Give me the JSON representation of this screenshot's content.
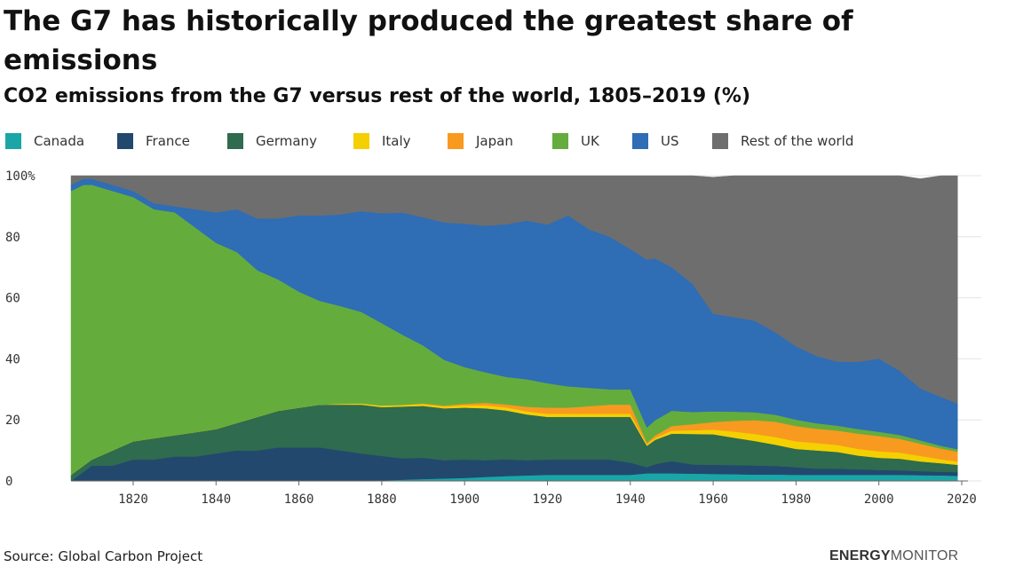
{
  "title": "The G7 has historically produced the greatest share of emissions",
  "subtitle": "CO2 emissions from the G7 versus rest of the world, 1805–2019 (%)",
  "source": "Source: Global Carbon Project",
  "brand": {
    "part1": "ENERGY",
    "part2": "MONITOR"
  },
  "chart_data": {
    "type": "area",
    "stacked": true,
    "title": "CO2 emissions from the G7 versus rest of the world, 1805–2019 (%)",
    "xlabel": "",
    "ylabel": "",
    "xlim": [
      1805,
      2019
    ],
    "ylim": [
      0,
      100
    ],
    "x_ticks": [
      1820,
      1840,
      1860,
      1880,
      1900,
      1920,
      1940,
      1960,
      1980,
      2000,
      2020
    ],
    "y_ticks": [
      0,
      20,
      40,
      60,
      80,
      100
    ],
    "y_tick_labels": [
      "0",
      "20",
      "40",
      "60",
      "80",
      "100%"
    ],
    "grid": "horizontal",
    "legend_position": "top",
    "x": [
      1805,
      1808,
      1810,
      1815,
      1820,
      1825,
      1830,
      1835,
      1840,
      1845,
      1850,
      1855,
      1860,
      1865,
      1870,
      1875,
      1880,
      1885,
      1890,
      1895,
      1900,
      1905,
      1910,
      1915,
      1920,
      1925,
      1930,
      1935,
      1940,
      1944,
      1946,
      1950,
      1955,
      1960,
      1965,
      1970,
      1975,
      1980,
      1985,
      1990,
      1995,
      2000,
      2005,
      2010,
      2015,
      2019
    ],
    "series": [
      {
        "name": "Canada",
        "color": "#1aa6a6",
        "values": [
          0,
          0,
          0,
          0,
          0,
          0,
          0,
          0,
          0,
          0,
          0,
          0,
          0,
          0,
          0,
          0,
          0.2,
          0.4,
          0.6,
          0.8,
          1,
          1.3,
          1.6,
          1.8,
          2,
          2,
          2,
          2,
          2,
          2.5,
          2.5,
          2.5,
          2.4,
          2.3,
          2.2,
          2.1,
          2.1,
          2,
          2,
          2,
          2,
          2,
          2,
          1.9,
          1.8,
          1.7
        ]
      },
      {
        "name": "France",
        "color": "#22486e",
        "values": [
          0,
          3,
          5,
          5,
          7,
          7,
          8,
          8,
          9,
          10,
          10,
          11,
          11,
          11,
          10,
          9,
          8,
          7,
          7,
          6,
          6,
          5.5,
          5.5,
          5,
          5,
          5,
          5,
          5,
          4,
          2,
          3,
          4,
          3,
          3,
          3,
          3,
          2.8,
          2.5,
          2,
          2,
          1.8,
          1.6,
          1.5,
          1.3,
          1.2,
          1.2
        ]
      },
      {
        "name": "Germany",
        "color": "#2e6b4f",
        "values": [
          2,
          2,
          2,
          5,
          6,
          7,
          7,
          8,
          8,
          9,
          11,
          12,
          13,
          14,
          15,
          16,
          16,
          17,
          17,
          17,
          17,
          17,
          16,
          15,
          14,
          14,
          14,
          14,
          15,
          7,
          8,
          9,
          10,
          10,
          9,
          8,
          7,
          6,
          6,
          5.5,
          4.5,
          4,
          3.8,
          3.2,
          2.8,
          2.4
        ]
      },
      {
        "name": "Italy",
        "color": "#f5d000",
        "values": [
          0,
          0,
          0,
          0,
          0,
          0,
          0,
          0,
          0,
          0,
          0,
          0,
          0,
          0,
          0.3,
          0.4,
          0.5,
          0.5,
          0.6,
          0.6,
          0.8,
          1,
          1,
          1,
          1,
          1,
          1,
          1,
          1,
          0.5,
          0.6,
          1,
          1.2,
          1.5,
          2,
          2.3,
          2.5,
          2.5,
          2.4,
          2.3,
          2.2,
          2.1,
          2,
          1.8,
          1.3,
          1.1
        ]
      },
      {
        "name": "Japan",
        "color": "#f89a20",
        "values": [
          0,
          0,
          0,
          0,
          0,
          0,
          0,
          0,
          0,
          0,
          0,
          0,
          0,
          0,
          0,
          0,
          0,
          0,
          0.2,
          0.3,
          0.5,
          0.8,
          1,
          1.5,
          2,
          2,
          2.5,
          3,
          3,
          0.5,
          0.8,
          1.5,
          2,
          2.5,
          3.5,
          4.5,
          5,
          5,
          4.7,
          4.7,
          5,
          5,
          4.5,
          4,
          3.5,
          3.2
        ]
      },
      {
        "name": "UK",
        "color": "#64ad3d",
        "values": [
          93,
          92,
          90,
          85,
          80,
          75,
          73,
          67,
          61,
          56,
          48,
          43,
          38,
          34,
          32,
          30,
          27,
          23,
          19,
          15,
          12,
          10,
          9,
          9,
          8,
          7,
          6,
          5,
          5,
          5,
          5,
          5,
          4,
          3.5,
          3,
          2.6,
          2.3,
          2.1,
          1.8,
          1.6,
          1.5,
          1.4,
          1.3,
          1.1,
          0.9,
          0.8
        ]
      },
      {
        "name": "US",
        "color": "#2f6db5",
        "values": [
          2,
          2,
          2,
          2,
          2,
          2,
          2,
          6,
          10,
          14,
          17,
          20,
          25,
          28,
          30,
          33,
          36,
          40,
          42,
          45,
          47,
          48,
          50,
          52,
          52,
          56,
          52,
          50,
          46,
          55,
          53,
          47,
          42,
          32,
          31,
          30,
          27,
          24,
          22,
          21,
          22,
          24,
          21,
          17,
          16,
          15
        ]
      },
      {
        "name": "Rest of the world",
        "color": "#6e6e6e",
        "values": [
          3,
          1,
          1,
          3,
          5,
          9,
          10,
          11,
          12,
          11,
          14,
          14,
          13,
          13,
          12.7,
          11.6,
          12.3,
          12.1,
          13.6,
          15.3,
          15.7,
          16.4,
          15.9,
          14.7,
          16,
          13,
          17.5,
          20,
          24,
          27.5,
          27.1,
          30,
          35.4,
          44.7,
          46.3,
          47.5,
          51.3,
          55.9,
          59.1,
          60.9,
          61,
          59.9,
          63.9,
          68.7,
          72.5,
          74.6
        ]
      }
    ]
  }
}
